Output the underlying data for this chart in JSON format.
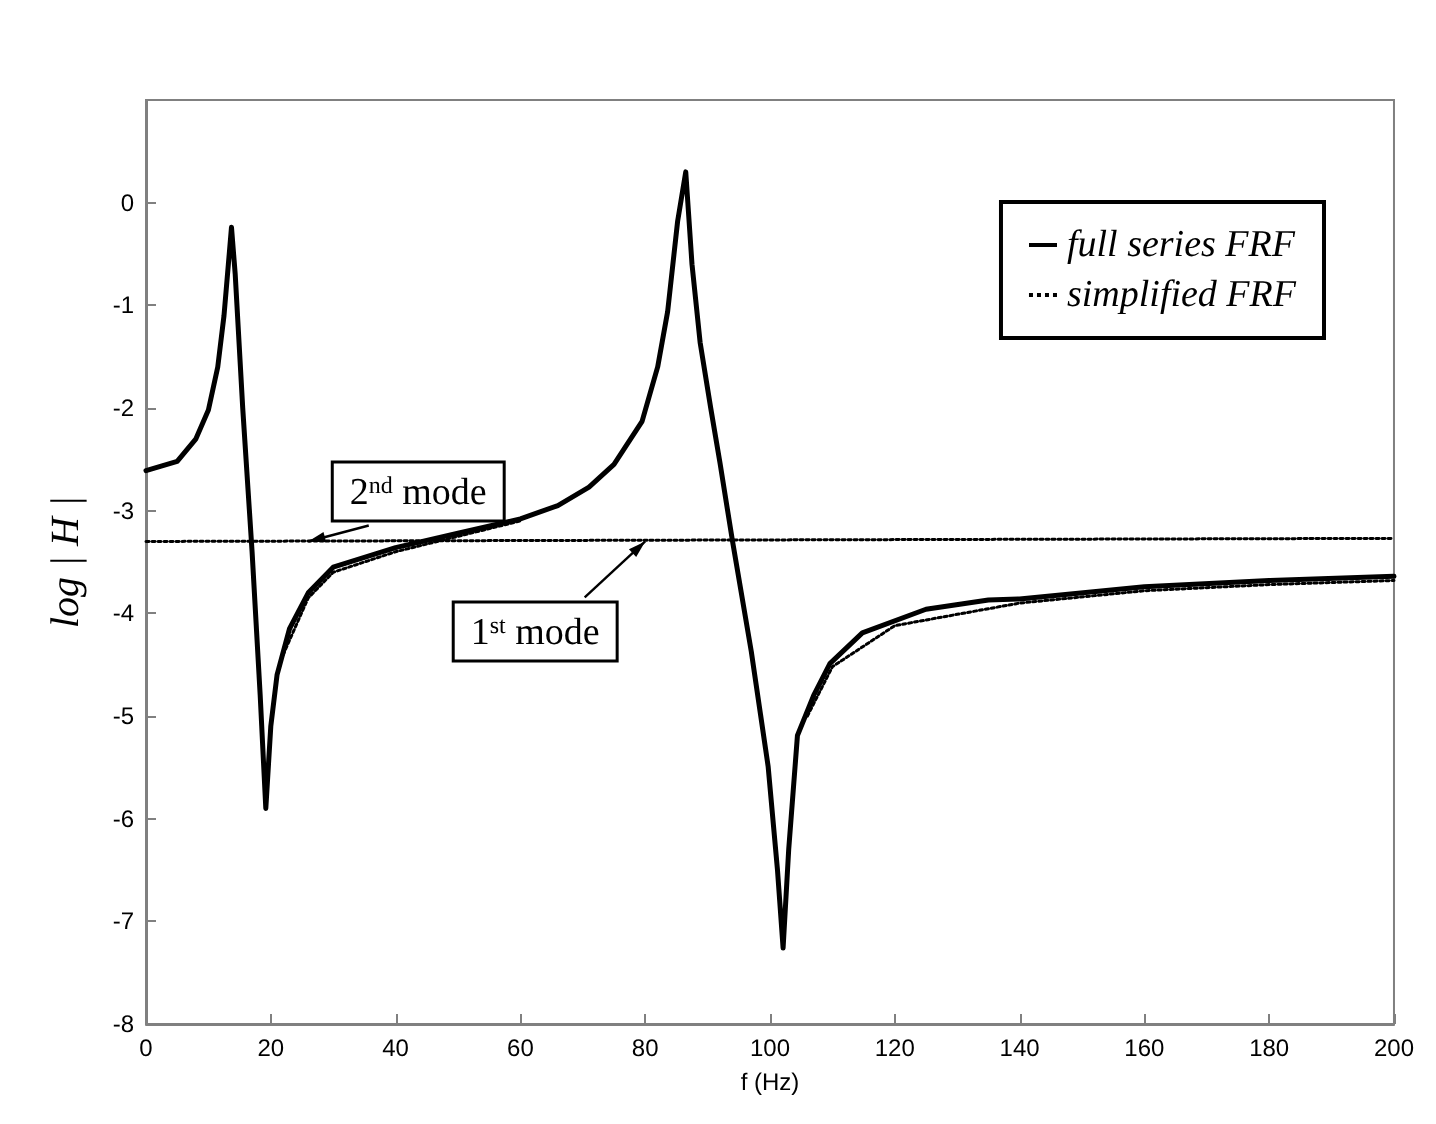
{
  "chart_data": {
    "type": "line",
    "xlabel": "f (Hz)",
    "ylabel": "log | H |",
    "xlim": [
      0,
      200
    ],
    "xticks": [
      0,
      20,
      40,
      60,
      80,
      100,
      120,
      140,
      160,
      180,
      200
    ],
    "ylim": [
      -8,
      1
    ],
    "yticks": [
      -8,
      -7,
      -6,
      -5,
      -4,
      -3,
      -2,
      -1,
      0
    ],
    "grid": false,
    "legend": "top right",
    "marker": "none",
    "series": [
      {
        "name": "full series FRF",
        "color": "#000000",
        "line_style": "solid",
        "x": [
          0,
          5,
          8,
          10,
          11.5,
          12.5,
          13.2,
          13.7,
          14.3,
          15.5,
          17,
          18.3,
          19.2,
          20,
          21,
          23,
          26,
          30,
          40,
          50,
          60,
          66,
          71,
          75,
          79.5,
          82,
          83.6,
          85.2,
          86.5,
          87.5,
          88.8,
          90.5,
          92,
          94,
          97,
          99.7,
          101.2,
          102.1,
          103,
          104.4,
          107,
          109.6,
          114.8,
          125,
          135,
          140,
          160,
          180,
          200
        ],
        "values": [
          -2.61,
          -2.52,
          -2.3,
          -2.02,
          -1.6,
          -1.1,
          -0.6,
          -0.24,
          -0.7,
          -2.0,
          -3.4,
          -4.8,
          -5.9,
          -5.1,
          -4.6,
          -4.15,
          -3.8,
          -3.55,
          -3.36,
          -3.22,
          -3.08,
          -2.95,
          -2.77,
          -2.55,
          -2.13,
          -1.6,
          -1.06,
          -0.18,
          0.3,
          -0.6,
          -1.36,
          -2.0,
          -2.54,
          -3.3,
          -4.37,
          -5.49,
          -6.5,
          -7.26,
          -6.3,
          -5.19,
          -4.8,
          -4.49,
          -4.19,
          -3.96,
          -3.87,
          -3.86,
          -3.74,
          -3.68,
          -3.64
        ]
      },
      {
        "name": "simplified FRF",
        "color": "#000000",
        "line_style": "dotted",
        "x": [
          22,
          26,
          30,
          40,
          50,
          60,
          80,
          106,
          110,
          120,
          140,
          160,
          180,
          200
        ],
        "values": [
          -4.4,
          -3.85,
          -3.6,
          -3.4,
          -3.25,
          -3.1,
          null,
          -5.0,
          -4.52,
          -4.12,
          -3.9,
          -3.78,
          -3.72,
          -3.68
        ]
      },
      {
        "color": "#000000",
        "line_style": "dotted",
        "x": [
          0,
          200
        ],
        "values": [
          -3.3,
          -3.27
        ]
      }
    ],
    "annotations": [
      {
        "text": "2$^{nd}$ mode",
        "x": 26,
        "y": -3.3
      },
      {
        "text": "1$^{st}$ mode",
        "x": 80,
        "y": -3.3
      }
    ]
  }
}
